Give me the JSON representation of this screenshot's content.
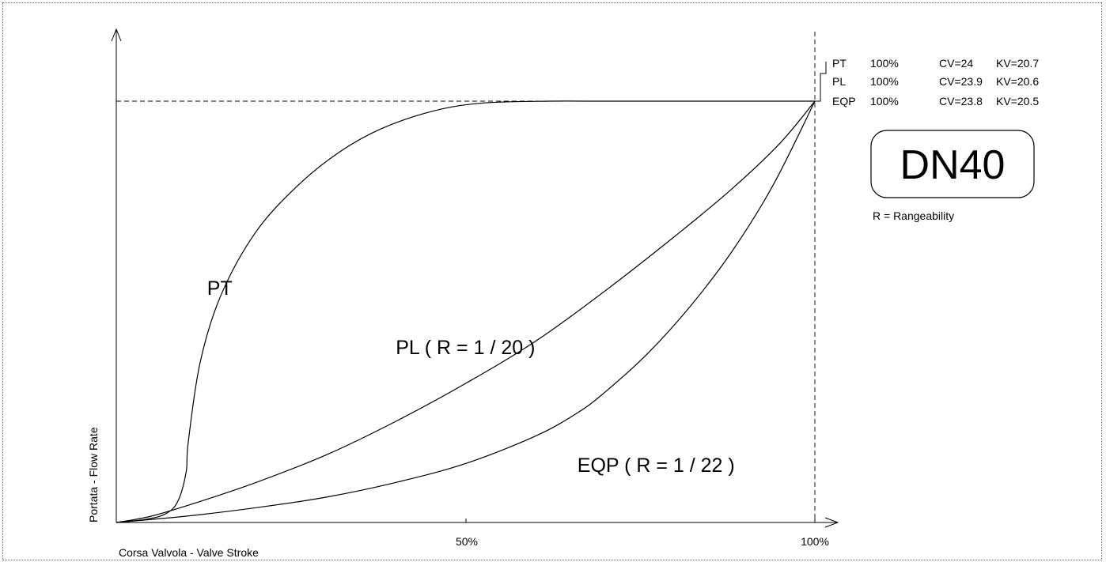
{
  "chart_data": {
    "type": "line",
    "xlabel": "Corsa Valvola - Valve Stroke",
    "ylabel": "Portata - Flow Rate",
    "xlim": [
      0,
      100
    ],
    "ylim": [
      0,
      100
    ],
    "x_ticks": [
      {
        "value": 50,
        "label": "50%"
      },
      {
        "value": 100,
        "label": "100%"
      }
    ],
    "grid": false,
    "series": [
      {
        "name": "PT",
        "points": [
          [
            0,
            0
          ],
          [
            4,
            0.7
          ],
          [
            7,
            2
          ],
          [
            8.8,
            5
          ],
          [
            10,
            12
          ],
          [
            10.3,
            19
          ],
          [
            12,
            38
          ],
          [
            15,
            54
          ],
          [
            20,
            69
          ],
          [
            26,
            80
          ],
          [
            32,
            88
          ],
          [
            38,
            93.5
          ],
          [
            45,
            97.5
          ],
          [
            52,
            99.5
          ],
          [
            62,
            100
          ],
          [
            70,
            100
          ],
          [
            100,
            100
          ]
        ]
      },
      {
        "name": "PL ( R = 1 / 20 )",
        "points": [
          [
            0,
            0
          ],
          [
            5,
            1.5
          ],
          [
            12,
            5
          ],
          [
            20,
            9.5
          ],
          [
            30,
            16
          ],
          [
            40,
            24
          ],
          [
            50,
            33
          ],
          [
            60,
            43
          ],
          [
            70,
            55
          ],
          [
            80,
            68
          ],
          [
            88,
            79
          ],
          [
            95,
            90
          ],
          [
            100,
            100
          ]
        ]
      },
      {
        "name": "EQP ( R = 1 / 22 )",
        "points": [
          [
            0,
            0
          ],
          [
            10,
            1.5
          ],
          [
            20,
            3.5
          ],
          [
            30,
            6
          ],
          [
            40,
            9.5
          ],
          [
            50,
            14
          ],
          [
            60,
            20.5
          ],
          [
            66,
            26
          ],
          [
            70,
            31
          ],
          [
            76,
            40
          ],
          [
            82,
            51
          ],
          [
            88,
            64
          ],
          [
            94,
            80
          ],
          [
            100,
            100
          ]
        ]
      }
    ],
    "annotations": [
      {
        "text": "PT",
        "x": 13,
        "y": 54
      },
      {
        "text": "PL ( R = 1 / 20 )",
        "x": 40,
        "y": 40
      },
      {
        "text": "EQP ( R = 1 / 22 )",
        "x": 66,
        "y": 12
      }
    ],
    "reference_lines": [
      {
        "axis": "y",
        "value": 100
      },
      {
        "axis": "x",
        "value": 100
      }
    ]
  },
  "info_rows": [
    {
      "name": "PT",
      "pct": "100%",
      "cv": "CV=24",
      "kv": "KV=20.7"
    },
    {
      "name": "PL",
      "pct": "100%",
      "cv": "CV=23.9",
      "kv": "KV=20.6"
    },
    {
      "name": "EQP",
      "pct": "100%",
      "cv": "CV=23.8",
      "kv": "KV=20.5"
    }
  ],
  "size_label": "DN40",
  "rangeability_note": "R = Rangeability"
}
